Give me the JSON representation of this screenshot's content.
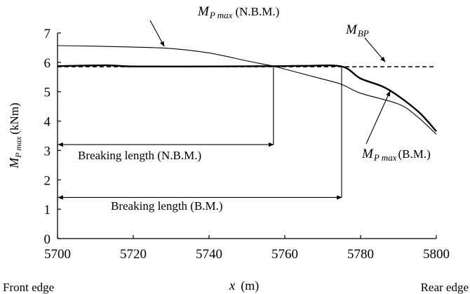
{
  "chart_data": {
    "type": "line",
    "title": "",
    "xlabel": "x",
    "xlabel_unit": "(m)",
    "ylabel": "M",
    "ylabel_sub": "P max",
    "ylabel_unit": "(kNm)",
    "xlim": [
      5700,
      5800
    ],
    "ylim": [
      0,
      7
    ],
    "xticks": [
      "5700",
      "5720",
      "5740",
      "5760",
      "5780",
      "5800"
    ],
    "yticks": [
      "0",
      "1",
      "2",
      "3",
      "4",
      "5",
      "6",
      "7"
    ],
    "grid": false,
    "legend": "none",
    "edge_labels": {
      "left": "Front edge",
      "right": "Rear edge"
    },
    "series": [
      {
        "id": "nbm",
        "style": "thin",
        "points": [
          [
            5700,
            6.57
          ],
          [
            5710,
            6.55
          ],
          [
            5720,
            6.52
          ],
          [
            5730,
            6.47
          ],
          [
            5740,
            6.32
          ],
          [
            5750,
            6.05
          ],
          [
            5757,
            5.87
          ],
          [
            5760,
            5.77
          ],
          [
            5770,
            5.43
          ],
          [
            5775,
            5.25
          ],
          [
            5780,
            4.95
          ],
          [
            5790,
            4.58
          ],
          [
            5795,
            4.15
          ],
          [
            5800,
            3.55
          ]
        ]
      },
      {
        "id": "bm",
        "style": "thick",
        "points": [
          [
            5700,
            5.87
          ],
          [
            5713,
            5.9
          ],
          [
            5720,
            5.86
          ],
          [
            5740,
            5.86
          ],
          [
            5757,
            5.87
          ],
          [
            5765,
            5.88
          ],
          [
            5775,
            5.86
          ],
          [
            5780,
            5.45
          ],
          [
            5787,
            5.1
          ],
          [
            5795,
            4.35
          ],
          [
            5800,
            3.65
          ]
        ]
      },
      {
        "id": "bp",
        "style": "dashed",
        "points": [
          [
            5700,
            5.85
          ],
          [
            5800,
            5.85
          ]
        ]
      }
    ],
    "annotations": [
      {
        "id": "nbm-curve-label",
        "main": "M",
        "sub": "P max",
        "tail": "(N.B.M.)"
      },
      {
        "id": "bp-label",
        "main": "M",
        "sub": "BP",
        "tail": ""
      },
      {
        "id": "bm-curve-label",
        "main": "M",
        "sub": "P max",
        "tail": "(B.M.)"
      },
      {
        "id": "breaking-nbm",
        "text": "Breaking length (N.B.M.)",
        "x_start": 5700,
        "x_end": 5757,
        "y": 3.2
      },
      {
        "id": "breaking-bm",
        "text": "Breaking length (B.M.)",
        "x_start": 5700,
        "x_end": 5775,
        "y": 1.4
      }
    ]
  }
}
